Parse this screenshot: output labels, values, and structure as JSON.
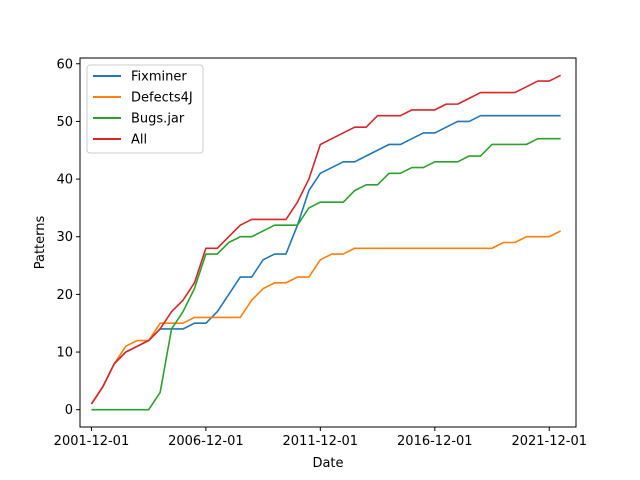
{
  "chart_data": {
    "type": "line",
    "title": "",
    "xlabel": "Date",
    "ylabel": "Patterns",
    "x_ticks": [
      "2001-12-01",
      "2006-12-01",
      "2011-12-01",
      "2016-12-01",
      "2021-12-01"
    ],
    "y_ticks": [
      0,
      10,
      20,
      30,
      40,
      50,
      60
    ],
    "xlim": [
      "2001-06-01",
      "2023-02-01"
    ],
    "ylim": [
      -3,
      61
    ],
    "grid": false,
    "legend_position": "top-left",
    "x": [
      "2001-12-01",
      "2002-06-01",
      "2002-12-01",
      "2003-06-01",
      "2003-12-01",
      "2004-06-01",
      "2004-12-01",
      "2005-06-01",
      "2005-12-01",
      "2006-06-01",
      "2006-12-01",
      "2007-06-01",
      "2007-12-01",
      "2008-06-01",
      "2008-12-01",
      "2009-06-01",
      "2009-12-01",
      "2010-06-01",
      "2010-12-01",
      "2011-06-01",
      "2011-12-01",
      "2012-06-01",
      "2012-12-01",
      "2013-06-01",
      "2013-12-01",
      "2014-06-01",
      "2014-12-01",
      "2015-06-01",
      "2015-12-01",
      "2016-06-01",
      "2016-12-01",
      "2017-06-01",
      "2017-12-01",
      "2018-06-01",
      "2018-12-01",
      "2019-06-01",
      "2019-12-01",
      "2020-06-01",
      "2020-12-01",
      "2021-06-01",
      "2021-12-01",
      "2022-06-01"
    ],
    "series": [
      {
        "name": "Fixminer",
        "color": "#1f77b4",
        "values": [
          1,
          4,
          8,
          10,
          11,
          12,
          14,
          14,
          14,
          15,
          15,
          17,
          20,
          23,
          23,
          26,
          27,
          27,
          32,
          38,
          41,
          42,
          43,
          43,
          44,
          45,
          46,
          46,
          47,
          48,
          48,
          49,
          50,
          50,
          51,
          51,
          51,
          51,
          51,
          51,
          51,
          51
        ]
      },
      {
        "name": "Defects4J",
        "color": "#ff7f0e",
        "values": [
          1,
          4,
          8,
          11,
          12,
          12,
          15,
          15,
          15,
          16,
          16,
          16,
          16,
          16,
          19,
          21,
          22,
          22,
          23,
          23,
          26,
          27,
          27,
          28,
          28,
          28,
          28,
          28,
          28,
          28,
          28,
          28,
          28,
          28,
          28,
          28,
          29,
          29,
          30,
          30,
          30,
          31
        ]
      },
      {
        "name": "Bugs.jar",
        "color": "#2ca02c",
        "values": [
          0,
          0,
          0,
          0,
          0,
          0,
          3,
          14,
          17,
          21,
          27,
          27,
          29,
          30,
          30,
          31,
          32,
          32,
          32,
          35,
          36,
          36,
          36,
          38,
          39,
          39,
          41,
          41,
          42,
          42,
          43,
          43,
          43,
          44,
          44,
          46,
          46,
          46,
          46,
          47,
          47,
          47
        ]
      },
      {
        "name": "All",
        "color": "#d62728",
        "values": [
          1,
          4,
          8,
          10,
          11,
          12,
          14,
          17,
          19,
          22,
          28,
          28,
          30,
          32,
          33,
          33,
          33,
          33,
          36,
          40,
          46,
          47,
          48,
          49,
          49,
          51,
          51,
          51,
          52,
          52,
          52,
          53,
          53,
          54,
          55,
          55,
          55,
          55,
          56,
          57,
          57,
          58
        ]
      }
    ]
  }
}
